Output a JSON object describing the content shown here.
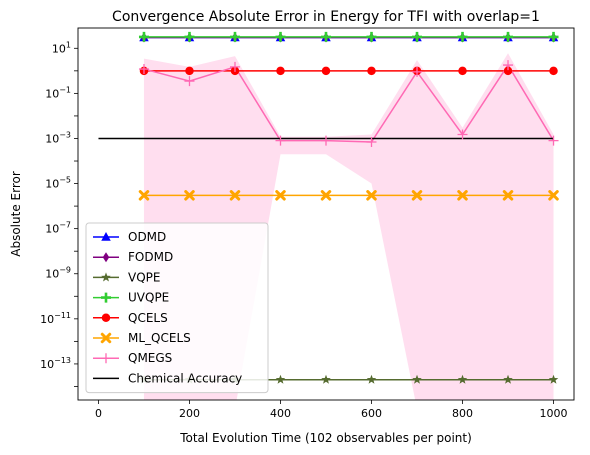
{
  "chart_data": {
    "type": "line",
    "title": "Convergence Absolute Error in Energy for TFI with overlap=1",
    "xlabel": "Total Evolution Time (102 observables per point)",
    "ylabel": "Absolute Error",
    "xlim": [
      -45,
      1045
    ],
    "ylim_log10": [
      -14.6,
      1.9
    ],
    "yscale": "log",
    "grid": false,
    "legend_position": "lower-left",
    "xticks": [
      {
        "value": 0,
        "label": "0"
      },
      {
        "value": 200,
        "label": "200"
      },
      {
        "value": 400,
        "label": "400"
      },
      {
        "value": 600,
        "label": "600"
      },
      {
        "value": 800,
        "label": "800"
      },
      {
        "value": 1000,
        "label": "1000"
      }
    ],
    "yticks": [
      {
        "exp": 1,
        "label": "10",
        "sup": "1"
      },
      {
        "exp": -1,
        "label": "10",
        "sup": "−1"
      },
      {
        "exp": -3,
        "label": "10",
        "sup": "−3"
      },
      {
        "exp": -5,
        "label": "10",
        "sup": "−5"
      },
      {
        "exp": -7,
        "label": "10",
        "sup": "−7"
      },
      {
        "exp": -9,
        "label": "10",
        "sup": "−9"
      },
      {
        "exp": -11,
        "label": "10",
        "sup": "−11"
      },
      {
        "exp": -13,
        "label": "10",
        "sup": "−13"
      }
    ],
    "x": [
      100,
      200,
      300,
      400,
      500,
      600,
      700,
      800,
      900,
      1000
    ],
    "series": [
      {
        "name": "ODMD",
        "color": "#0000ff",
        "marker": "triangle",
        "values": [
          30,
          30,
          30,
          30,
          30,
          30,
          30,
          30,
          30,
          30
        ]
      },
      {
        "name": "FODMD",
        "color": "#800080",
        "marker": "diamond",
        "values": [
          30,
          30,
          30,
          30,
          30,
          30,
          30,
          30,
          30,
          30
        ]
      },
      {
        "name": "VQPE",
        "color": "#556b2f",
        "marker": "star",
        "values": [
          2e-14,
          2e-14,
          2e-14,
          2e-14,
          2e-14,
          2e-14,
          2e-14,
          2e-14,
          2e-14,
          2e-14
        ]
      },
      {
        "name": "UVQPE",
        "color": "#32cd32",
        "marker": "plus",
        "values": [
          32,
          32,
          32,
          32,
          32,
          32,
          32,
          32,
          32,
          32
        ]
      },
      {
        "name": "QCELS",
        "color": "#ff0000",
        "marker": "circle",
        "values": [
          1,
          1,
          1,
          1,
          1,
          1,
          1,
          1,
          1,
          1
        ]
      },
      {
        "name": "ML_QCELS",
        "color": "#ffa500",
        "marker": "x",
        "values": [
          3e-06,
          3e-06,
          3e-06,
          3e-06,
          3e-06,
          3e-06,
          3e-06,
          3e-06,
          3e-06,
          3e-06
        ]
      },
      {
        "name": "QMEGS",
        "color": "#ff69b4",
        "marker": "thin-plus",
        "values": [
          1.2,
          0.35,
          1.5,
          0.0008,
          0.0008,
          0.0007,
          0.9,
          0.0015,
          1.8,
          0.0008
        ],
        "band_upper": [
          3.5,
          1.5,
          4.5,
          0.0012,
          0.0012,
          0.0015,
          3.0,
          0.003,
          6.0,
          0.0015
        ],
        "band_lower": [
          1e-15,
          1e-15,
          1e-15,
          0.0002,
          0.0002,
          1e-05,
          1e-15,
          1e-15,
          1e-15,
          1e-15
        ]
      },
      {
        "name": "Chemical Accuracy",
        "color": "#000000",
        "marker": "none",
        "x": [
          0,
          1000
        ],
        "values": [
          0.001,
          0.001
        ]
      }
    ]
  }
}
